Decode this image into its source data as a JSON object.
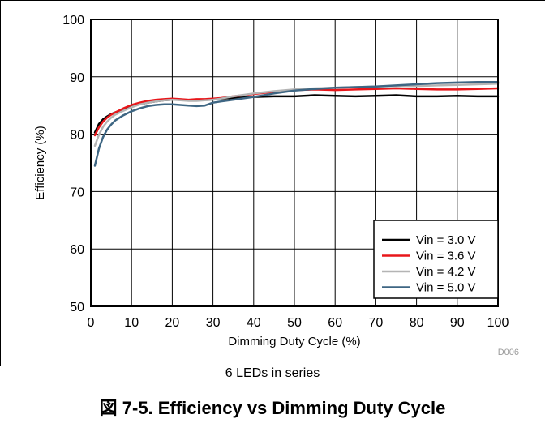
{
  "caption": "6 LEDs in series",
  "figure_title": "図 7-5. Efficiency vs Dimming Duty Cycle",
  "code": "D006",
  "colors": {
    "black": "#000000",
    "red": "#e8161a",
    "gray": "#b4b4b4",
    "blue": "#3e6683"
  },
  "chart_data": {
    "type": "line",
    "title": "",
    "xlabel": "Dimming Duty Cycle (%)",
    "ylabel": "Efficiency (%)",
    "xlim": [
      0,
      100
    ],
    "ylim": [
      50,
      100
    ],
    "xticks": [
      0,
      10,
      20,
      30,
      40,
      50,
      60,
      70,
      80,
      90,
      100
    ],
    "yticks": [
      50,
      60,
      70,
      80,
      90,
      100
    ],
    "grid": true,
    "legend_position": "bottom-right",
    "x": [
      1,
      2,
      3,
      4,
      5,
      6,
      8,
      10,
      12,
      14,
      16,
      18,
      20,
      22,
      24,
      26,
      28,
      30,
      32,
      35,
      40,
      45,
      50,
      55,
      60,
      65,
      70,
      75,
      80,
      85,
      90,
      95,
      100
    ],
    "series": [
      {
        "name": "Vin = 3.0 V",
        "color": "#000000",
        "values": [
          80.3,
          81.8,
          82.6,
          83.1,
          83.5,
          83.8,
          84.3,
          84.8,
          85.2,
          85.5,
          85.7,
          85.9,
          86.0,
          86.0,
          85.9,
          85.9,
          86.0,
          86.1,
          86.2,
          86.3,
          86.5,
          86.6,
          86.6,
          86.8,
          86.7,
          86.6,
          86.7,
          86.8,
          86.6,
          86.6,
          86.7,
          86.6,
          86.6
        ]
      },
      {
        "name": "Vin = 3.6 V",
        "color": "#e8161a",
        "values": [
          79.8,
          81.2,
          82.2,
          82.9,
          83.4,
          83.8,
          84.5,
          85.1,
          85.5,
          85.8,
          86.0,
          86.1,
          86.2,
          86.1,
          86.0,
          86.1,
          86.1,
          86.2,
          86.3,
          86.6,
          87.0,
          87.4,
          87.7,
          87.8,
          87.7,
          87.8,
          87.9,
          88.0,
          87.9,
          87.8,
          87.8,
          87.9,
          88.0
        ]
      },
      {
        "name": "Vin = 4.2 V",
        "color": "#b4b4b4",
        "values": [
          78.0,
          79.9,
          81.3,
          82.2,
          82.9,
          83.4,
          84.1,
          84.7,
          85.2,
          85.5,
          85.7,
          85.9,
          86.0,
          85.9,
          85.8,
          85.8,
          85.9,
          86.0,
          86.2,
          86.6,
          87.1,
          87.5,
          87.8,
          88.0,
          88.1,
          88.2,
          88.3,
          88.4,
          88.4,
          88.5,
          88.6,
          88.7,
          88.8
        ]
      },
      {
        "name": "Vin = 5.0 V",
        "color": "#3e6683",
        "values": [
          74.5,
          77.5,
          79.5,
          80.8,
          81.7,
          82.4,
          83.3,
          84.0,
          84.5,
          84.9,
          85.1,
          85.2,
          85.2,
          85.1,
          85.0,
          84.9,
          85.0,
          85.5,
          85.7,
          86.0,
          86.5,
          87.1,
          87.6,
          87.9,
          88.1,
          88.2,
          88.3,
          88.5,
          88.7,
          88.9,
          89.0,
          89.1,
          89.1
        ]
      }
    ]
  }
}
